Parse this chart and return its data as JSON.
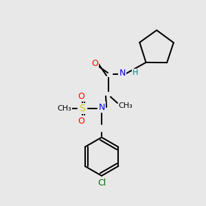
{
  "background_color": "#e8e8e8",
  "bond_color": "#000000",
  "bond_width": 1.5,
  "atom_colors": {
    "O": "#ff0000",
    "N": "#0000ff",
    "N_amide": "#0000cd",
    "S": "#cccc00",
    "Cl": "#006400",
    "H": "#008080",
    "C": "#000000"
  },
  "font_size": 9,
  "font_size_small": 8
}
